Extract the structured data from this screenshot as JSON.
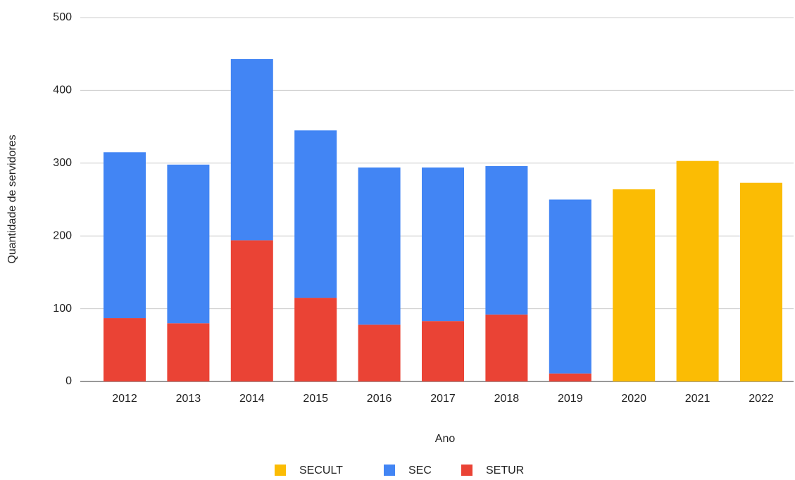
{
  "chart_data": {
    "type": "stacked_bar",
    "x_label": "Ano",
    "y_label": "Quantidade de servidores",
    "categories": [
      "2012",
      "2013",
      "2014",
      "2015",
      "2016",
      "2017",
      "2018",
      "2019",
      "2020",
      "2021",
      "2022"
    ],
    "series": [
      {
        "name": "SECULT",
        "color": "#fbbc04",
        "values": [
          null,
          null,
          null,
          null,
          null,
          null,
          null,
          null,
          264,
          303,
          273
        ]
      },
      {
        "name": "SEC",
        "color": "#4285f4",
        "values": [
          228,
          218,
          249,
          230,
          216,
          211,
          204,
          239,
          null,
          null,
          null
        ]
      },
      {
        "name": "SETUR",
        "color": "#ea4335",
        "values": [
          87,
          80,
          194,
          115,
          78,
          83,
          92,
          11,
          null,
          null,
          null
        ]
      }
    ],
    "ylim": [
      0,
      500
    ],
    "yticks": [
      0,
      100,
      200,
      300,
      400,
      500
    ],
    "grid": true,
    "legend": "bottom"
  }
}
